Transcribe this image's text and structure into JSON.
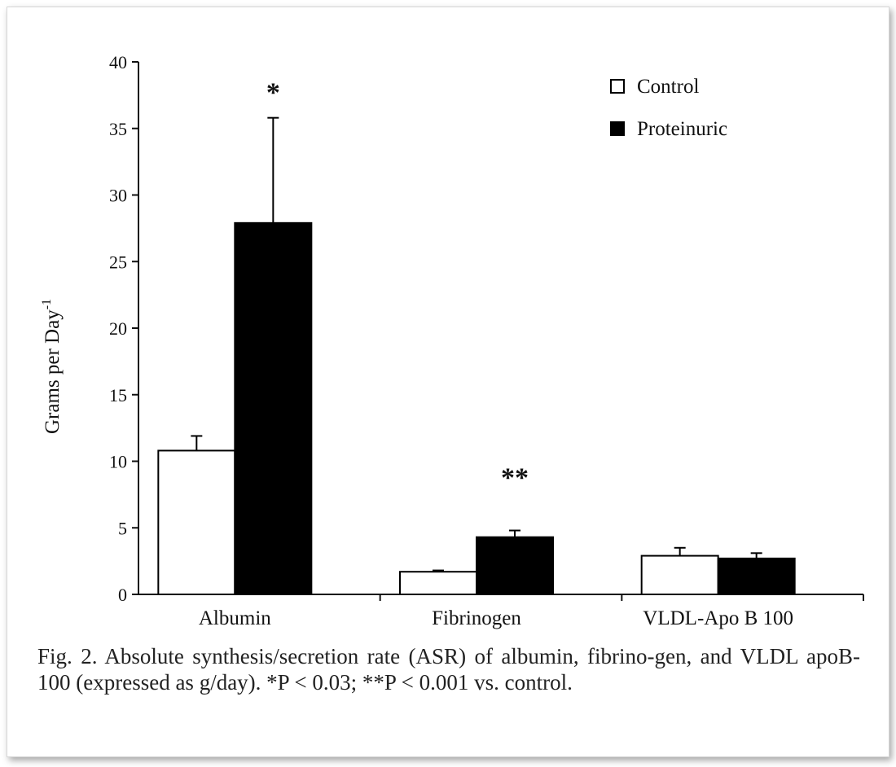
{
  "chart_data": {
    "type": "bar",
    "categories": [
      "Albumin",
      "Fibrinogen",
      "VLDL-Apo B 100"
    ],
    "series": [
      {
        "name": "Control",
        "values": [
          10.8,
          1.7,
          2.9
        ],
        "errors": [
          1.1,
          0.1,
          0.6
        ],
        "color": "#ffffff"
      },
      {
        "name": "Proteinuric",
        "values": [
          27.9,
          4.3,
          2.7
        ],
        "errors": [
          7.9,
          0.5,
          0.4
        ],
        "color": "#000000"
      }
    ],
    "significance": [
      "*",
      "**",
      ""
    ],
    "ylabel": "Grams per Day",
    "ylabel_sup": "-1",
    "ylim": [
      0,
      40
    ],
    "yticks": [
      0,
      5,
      10,
      15,
      20,
      25,
      30,
      35,
      40
    ],
    "legend_position": "top-right",
    "grid": false
  },
  "caption": "Fig. 2. Absolute synthesis/secretion rate (ASR) of albumin, fibrino-gen, and VLDL apoB-100 (expressed as g/day). *P < 0.03; **P < 0.001 vs. control."
}
